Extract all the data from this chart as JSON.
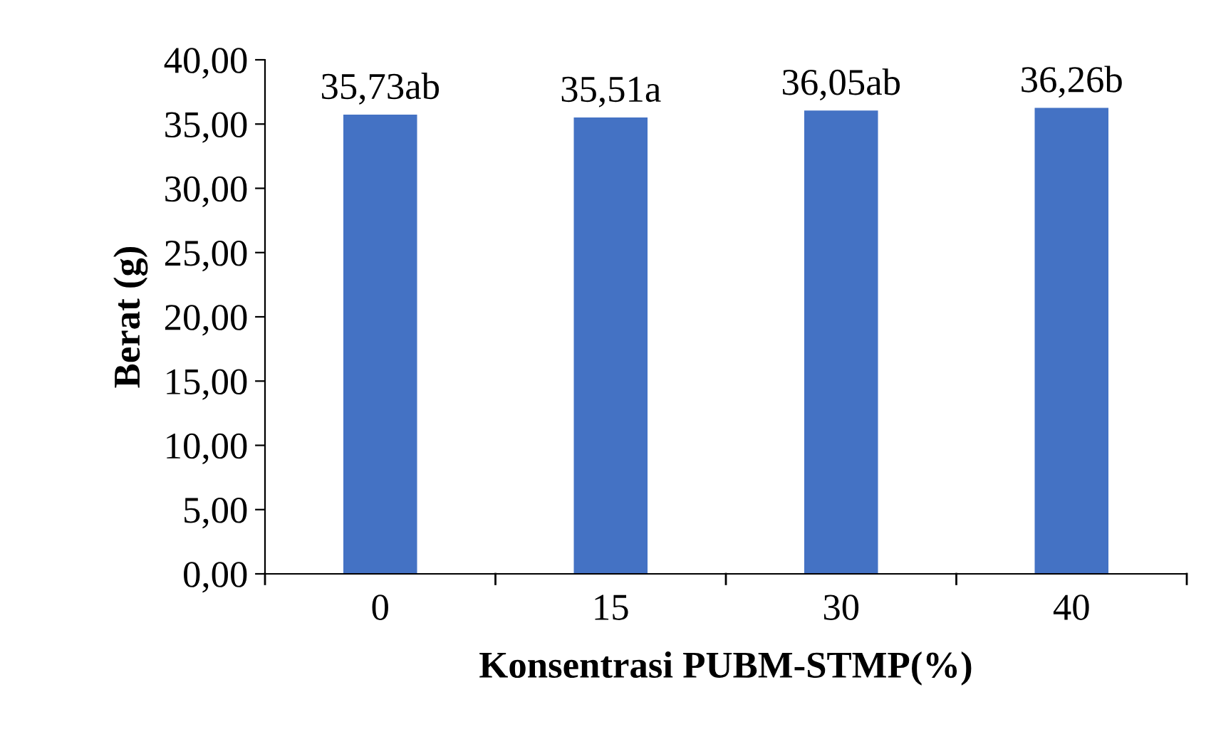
{
  "chart_data": {
    "type": "bar",
    "xlabel": "Konsentrasi PUBM-STMP(%)",
    "ylabel": "Berat (g)",
    "categories": [
      "0",
      "15",
      "30",
      "40"
    ],
    "values": [
      35.73,
      35.51,
      36.05,
      36.26
    ],
    "value_labels": [
      "35,73ab",
      "35,51a",
      "36,05ab",
      "36,26b"
    ],
    "color": "#4472c4",
    "ylim": [
      0,
      40
    ],
    "yticks": [
      {
        "value": 0,
        "label": "0,00"
      },
      {
        "value": 5,
        "label": "5,00"
      },
      {
        "value": 10,
        "label": "10,00"
      },
      {
        "value": 15,
        "label": "15,00"
      },
      {
        "value": 20,
        "label": "20,00"
      },
      {
        "value": 25,
        "label": "25,00"
      },
      {
        "value": 30,
        "label": "30,00"
      },
      {
        "value": 35,
        "label": "35,00"
      },
      {
        "value": 40,
        "label": "40,00"
      }
    ],
    "grid": false,
    "legend": false
  }
}
